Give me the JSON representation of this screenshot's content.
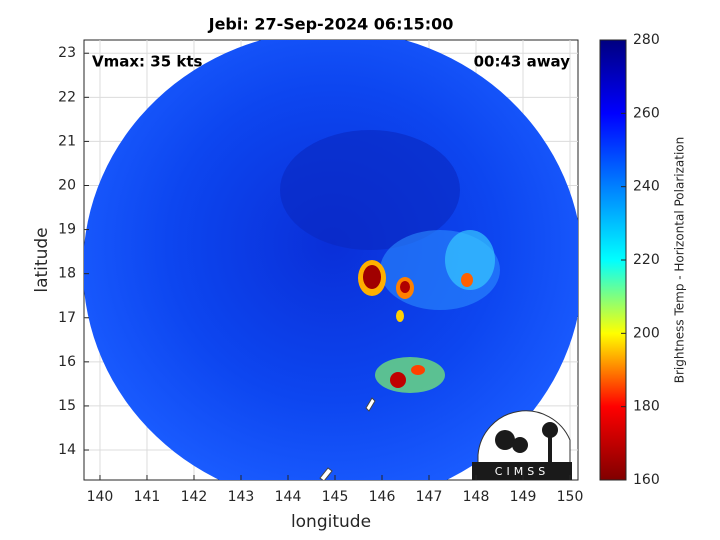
{
  "chart_data": {
    "type": "image",
    "title": "Jebi: 27-Sep-2024 06:15:00",
    "annotations": [
      "Vmax: 35 kts",
      "00:43 away"
    ],
    "x_label": "longitude",
    "y_label": "latitude",
    "xlim": [
      139.66,
      150.17
    ],
    "xticks": [
      140,
      141,
      142,
      143,
      144,
      145,
      146,
      147,
      148,
      149,
      150
    ],
    "ylim": [
      13.32,
      23.3
    ],
    "yticks": [
      14,
      15,
      16,
      17,
      18,
      19,
      20,
      21,
      22,
      23
    ],
    "grid": true,
    "colorbar": {
      "label": "Brightness Temp - Horizontal Polarization",
      "lim": [
        160,
        280
      ],
      "ticks": [
        160,
        180,
        200,
        220,
        240,
        260,
        280
      ],
      "colormap": [
        "#800000",
        "#ff0000",
        "#ffff00",
        "#00ffff",
        "#0080ff",
        "#0000ff",
        "#000080"
      ]
    },
    "logo": "CIMSS"
  }
}
